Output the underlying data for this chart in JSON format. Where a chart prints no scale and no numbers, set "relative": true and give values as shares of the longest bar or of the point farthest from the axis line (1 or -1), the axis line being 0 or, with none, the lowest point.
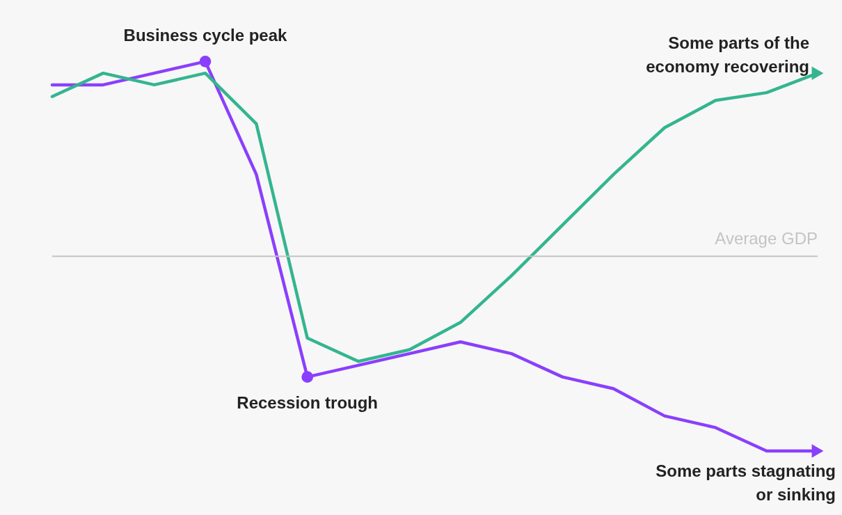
{
  "chart_data": {
    "type": "line",
    "relative": true,
    "legend": false,
    "line_style": "solid",
    "categories": [
      null,
      null,
      null,
      null,
      null,
      null,
      null,
      null,
      null,
      null,
      null,
      null,
      null,
      null,
      null,
      null
    ],
    "series": [
      {
        "color": "#8a3ffc",
        "values": [
          0.88,
          0.88,
          0.94,
          1,
          0.42,
          -0.62,
          -0.56,
          -0.5,
          -0.44,
          -0.5,
          -0.62,
          -0.68,
          -0.82,
          -0.88,
          -1,
          -1
        ]
      },
      {
        "color": "#34b58f",
        "values": [
          0.82,
          0.94,
          0.88,
          0.94,
          0.68,
          -0.42,
          -0.54,
          -0.48,
          -0.34,
          -0.1,
          0.16,
          0.42,
          0.66,
          0.8,
          0.84,
          0.94
        ]
      }
    ],
    "ref_lines": [
      {
        "axis": "y",
        "value": 0,
        "label": "Average GDP",
        "color": "#c4c4c4"
      }
    ],
    "annotations": [
      "Business cycle peak",
      "Recession trough",
      "Some parts of the\neconomy recovering",
      "Some parts stagnating\nor sinking"
    ]
  }
}
